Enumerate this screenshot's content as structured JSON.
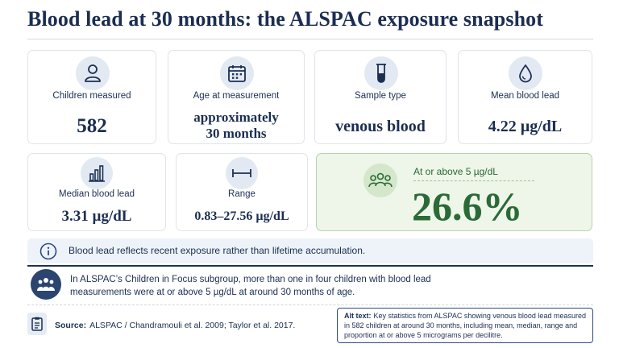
{
  "title": "Blood lead at 30 months: the ALSPAC exposure snapshot",
  "stats": {
    "children_measured": {
      "label": "Children measured",
      "value": "582",
      "icon": "person-icon"
    },
    "age": {
      "label": "Age at measurement",
      "value_line1": "approximately",
      "value_line2": "30 months",
      "icon": "calendar-icon"
    },
    "sample_type": {
      "label": "Sample type",
      "value": "venous blood",
      "icon": "test-tube-icon"
    },
    "mean": {
      "label": "Mean blood lead",
      "value": "4.22 µg/dL",
      "icon": "blood-drop-icon"
    },
    "median": {
      "label": "Median blood lead",
      "value": "3.31 µg/dL",
      "icon": "bar-chart-icon"
    },
    "range": {
      "label": "Range",
      "value": "0.83–27.56 µg/dL",
      "icon": "range-icon"
    }
  },
  "highlight": {
    "label": "At or above 5 µg/dL",
    "value": "26.6%",
    "icon": "group-icon"
  },
  "note": {
    "text": "Blood lead reflects recent exposure rather than lifetime accumulation.",
    "icon": "info-icon"
  },
  "summary": {
    "text": "In ALSPAC’s Children in Focus subgroup, more than one in four children with blood lead measurements were at or above 5 µg/dL at around 30 months of age.",
    "icon": "people-icon"
  },
  "source": {
    "label": "Source:",
    "text": "ALSPAC / Chandramouli et al. 2009; Taylor et al. 2017.",
    "icon": "document-icon"
  },
  "alt_text": {
    "label": "Alt text:",
    "text": "Key statistics from ALSPAC showing venous blood lead measured in 582 children at around 30 months, including mean, median, range and proportion at or above 5 micrograms per decilitre."
  },
  "colors": {
    "navy": "#1b2d52",
    "green": "#2a6a35",
    "green_bg": "#eef5e9",
    "note_bg": "#eef3f9"
  }
}
